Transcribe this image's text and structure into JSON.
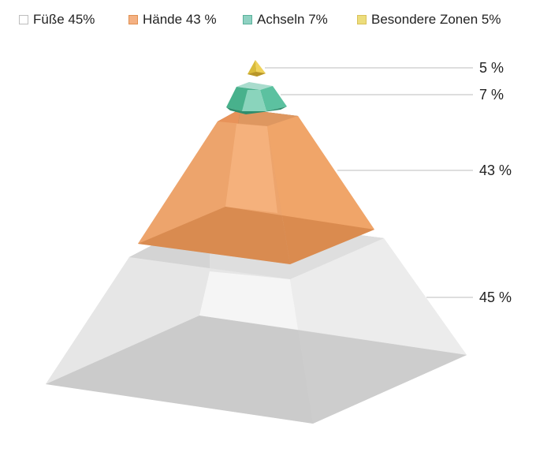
{
  "chart_data": {
    "type": "pyramid",
    "series": [
      {
        "name": "Füße 45%",
        "value": 45,
        "data_label": "45 %",
        "color": "#dcdcdc",
        "swatch_border": "#bdbdbd"
      },
      {
        "name": "Hände 43 %",
        "value": 43,
        "data_label": "43 %",
        "color": "#f0a468",
        "swatch_border": "#e09052"
      },
      {
        "name": "Achseln 7%",
        "value": 7,
        "data_label": "7 %",
        "color": "#6fc6a8",
        "swatch_border": "#5ab19a"
      },
      {
        "name": "Besondere Zonen 5%",
        "value": 5,
        "data_label": "5 %",
        "color": "#ecd66c",
        "swatch_border": "#d9c15a"
      }
    ],
    "legend_position": "top",
    "grid": false
  }
}
